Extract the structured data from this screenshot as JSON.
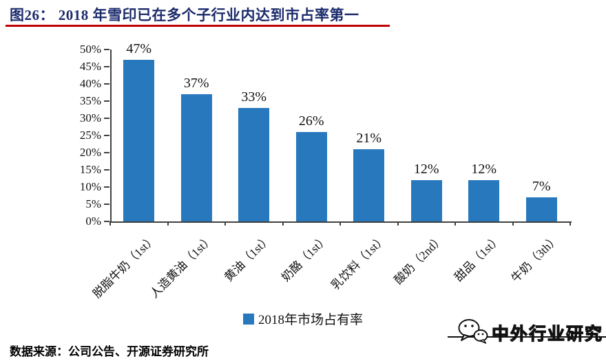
{
  "title": {
    "text": "图26： 2018 年雪印已在多个子行业内达到市占率第一"
  },
  "chart_data": {
    "type": "bar",
    "title": "2018 年雪印已在多个子行业内达到市占率第一",
    "categories": [
      "脱脂牛奶（1st）",
      "人造黄油（1st）",
      "黄油（1st）",
      "奶酪（1st）",
      "乳饮料（1st）",
      "酸奶（2nd）",
      "甜品（1st）",
      "牛奶（3th）"
    ],
    "values": [
      47,
      37,
      33,
      26,
      21,
      12,
      12,
      7
    ],
    "value_labels": [
      "47%",
      "37%",
      "33%",
      "26%",
      "21%",
      "12%",
      "12%",
      "7%"
    ],
    "ytick_labels": [
      "0%",
      "5%",
      "10%",
      "15%",
      "20%",
      "25%",
      "30%",
      "35%",
      "40%",
      "45%",
      "50%"
    ],
    "ylim": [
      0,
      50
    ],
    "ytick_step": 5,
    "xlabel": "",
    "ylabel": "",
    "grid": false,
    "legend": "2018年市场占有率",
    "legend_position": "bottom",
    "bar_color": "#2878BE"
  },
  "watermark": {
    "text": "中外行业研究",
    "icon": "wechat-logo"
  },
  "footer": {
    "source": "数据来源：公司公告、开源证券研究所"
  },
  "colors": {
    "title_text": "#1B2A6B",
    "title_rule": "#C00000",
    "bar": "#2878BE",
    "axis": "#404040",
    "text": "#111111"
  }
}
